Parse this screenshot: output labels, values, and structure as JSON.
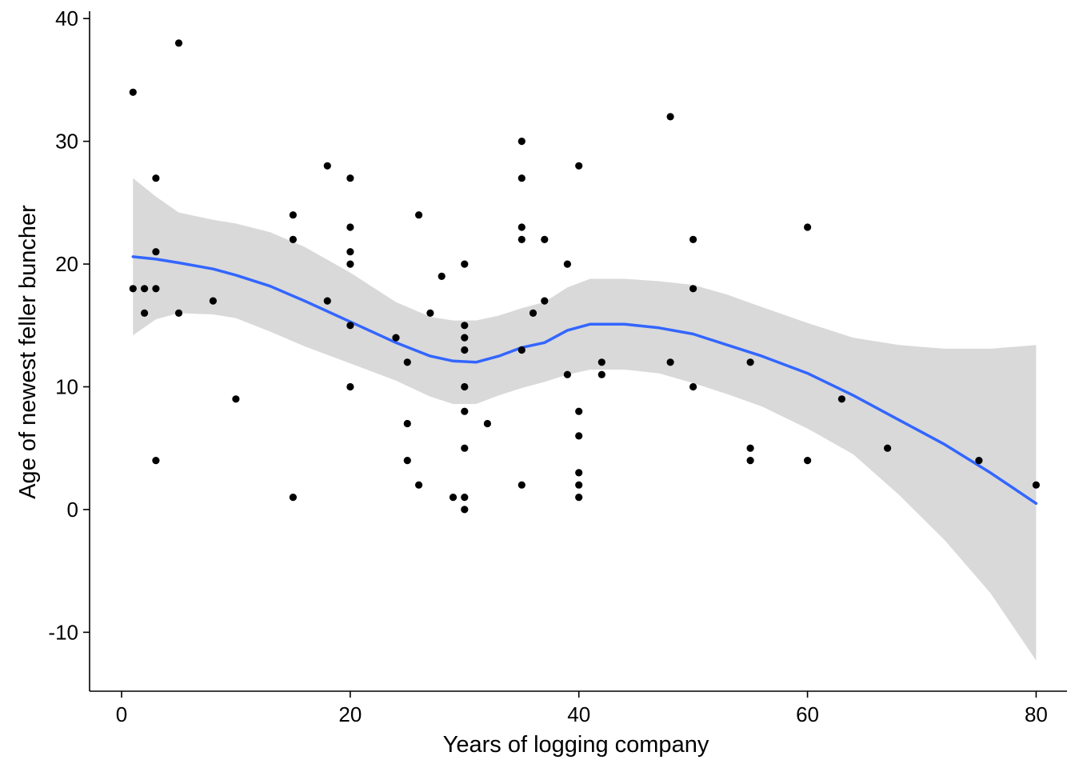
{
  "chart_data": {
    "type": "scatter",
    "title": "",
    "xlabel": "Years of logging company",
    "ylabel": "Age of newest feller buncher",
    "xlim": [
      -2.8,
      82.7
    ],
    "ylim": [
      -14.8,
      40.6
    ],
    "x_ticks": [
      0,
      20,
      40,
      60,
      80
    ],
    "y_ticks": [
      -10,
      0,
      10,
      20,
      30,
      40
    ],
    "grid": false,
    "legend": "none",
    "colors": {
      "points": "#000000",
      "smooth_line": "#3366FF",
      "ribbon": "#D9D9D9"
    },
    "points": [
      {
        "x": 1,
        "y": 34
      },
      {
        "x": 1,
        "y": 18
      },
      {
        "x": 2,
        "y": 18
      },
      {
        "x": 2,
        "y": 16
      },
      {
        "x": 3,
        "y": 27
      },
      {
        "x": 3,
        "y": 21
      },
      {
        "x": 3,
        "y": 18
      },
      {
        "x": 3,
        "y": 4
      },
      {
        "x": 5,
        "y": 38
      },
      {
        "x": 5,
        "y": 16
      },
      {
        "x": 8,
        "y": 17
      },
      {
        "x": 10,
        "y": 9
      },
      {
        "x": 15,
        "y": 24
      },
      {
        "x": 15,
        "y": 22
      },
      {
        "x": 15,
        "y": 1
      },
      {
        "x": 18,
        "y": 28
      },
      {
        "x": 18,
        "y": 17
      },
      {
        "x": 20,
        "y": 27
      },
      {
        "x": 20,
        "y": 23
      },
      {
        "x": 20,
        "y": 21
      },
      {
        "x": 20,
        "y": 20
      },
      {
        "x": 20,
        "y": 15
      },
      {
        "x": 20,
        "y": 10
      },
      {
        "x": 24,
        "y": 14
      },
      {
        "x": 25,
        "y": 12
      },
      {
        "x": 25,
        "y": 7
      },
      {
        "x": 25,
        "y": 4
      },
      {
        "x": 26,
        "y": 24
      },
      {
        "x": 26,
        "y": 2
      },
      {
        "x": 27,
        "y": 16
      },
      {
        "x": 28,
        "y": 19
      },
      {
        "x": 29,
        "y": 1
      },
      {
        "x": 30,
        "y": 20
      },
      {
        "x": 30,
        "y": 15
      },
      {
        "x": 30,
        "y": 14
      },
      {
        "x": 30,
        "y": 13
      },
      {
        "x": 30,
        "y": 10
      },
      {
        "x": 30,
        "y": 8
      },
      {
        "x": 30,
        "y": 5
      },
      {
        "x": 30,
        "y": 1
      },
      {
        "x": 30,
        "y": 0
      },
      {
        "x": 32,
        "y": 7
      },
      {
        "x": 35,
        "y": 30
      },
      {
        "x": 35,
        "y": 27
      },
      {
        "x": 35,
        "y": 23
      },
      {
        "x": 35,
        "y": 22
      },
      {
        "x": 35,
        "y": 13
      },
      {
        "x": 35,
        "y": 2
      },
      {
        "x": 36,
        "y": 16
      },
      {
        "x": 37,
        "y": 22
      },
      {
        "x": 37,
        "y": 17
      },
      {
        "x": 39,
        "y": 20
      },
      {
        "x": 39,
        "y": 11
      },
      {
        "x": 40,
        "y": 28
      },
      {
        "x": 40,
        "y": 8
      },
      {
        "x": 40,
        "y": 6
      },
      {
        "x": 40,
        "y": 3
      },
      {
        "x": 40,
        "y": 2
      },
      {
        "x": 40,
        "y": 1
      },
      {
        "x": 42,
        "y": 12
      },
      {
        "x": 42,
        "y": 11
      },
      {
        "x": 48,
        "y": 32
      },
      {
        "x": 48,
        "y": 12
      },
      {
        "x": 50,
        "y": 22
      },
      {
        "x": 50,
        "y": 18
      },
      {
        "x": 50,
        "y": 10
      },
      {
        "x": 55,
        "y": 12
      },
      {
        "x": 55,
        "y": 5
      },
      {
        "x": 55,
        "y": 4
      },
      {
        "x": 60,
        "y": 23
      },
      {
        "x": 60,
        "y": 4
      },
      {
        "x": 63,
        "y": 9
      },
      {
        "x": 67,
        "y": 5
      },
      {
        "x": 75,
        "y": 4
      },
      {
        "x": 80,
        "y": 2
      }
    ],
    "smooth": [
      {
        "x": 1,
        "y": 20.6,
        "lo": 14.2,
        "hi": 27.0
      },
      {
        "x": 3,
        "y": 20.4,
        "lo": 15.5,
        "hi": 25.5
      },
      {
        "x": 5,
        "y": 20.1,
        "lo": 16.0,
        "hi": 24.2
      },
      {
        "x": 8,
        "y": 19.6,
        "lo": 15.9,
        "hi": 23.6
      },
      {
        "x": 10,
        "y": 19.1,
        "lo": 15.6,
        "hi": 23.3
      },
      {
        "x": 13,
        "y": 18.2,
        "lo": 14.5,
        "hi": 22.6
      },
      {
        "x": 16,
        "y": 17.0,
        "lo": 13.3,
        "hi": 21.4
      },
      {
        "x": 20,
        "y": 15.3,
        "lo": 11.9,
        "hi": 19.3
      },
      {
        "x": 24,
        "y": 13.6,
        "lo": 10.5,
        "hi": 16.9
      },
      {
        "x": 27,
        "y": 12.5,
        "lo": 9.2,
        "hi": 15.7
      },
      {
        "x": 29,
        "y": 12.1,
        "lo": 8.6,
        "hi": 15.4
      },
      {
        "x": 31,
        "y": 12.0,
        "lo": 8.6,
        "hi": 15.4
      },
      {
        "x": 33,
        "y": 12.5,
        "lo": 9.3,
        "hi": 15.8
      },
      {
        "x": 35,
        "y": 13.2,
        "lo": 9.9,
        "hi": 16.4
      },
      {
        "x": 37,
        "y": 13.6,
        "lo": 10.4,
        "hi": 16.9
      },
      {
        "x": 39,
        "y": 14.6,
        "lo": 11.0,
        "hi": 18.1
      },
      {
        "x": 41,
        "y": 15.1,
        "lo": 11.4,
        "hi": 18.8
      },
      {
        "x": 44,
        "y": 15.1,
        "lo": 11.4,
        "hi": 18.8
      },
      {
        "x": 47,
        "y": 14.8,
        "lo": 11.1,
        "hi": 18.6
      },
      {
        "x": 50,
        "y": 14.3,
        "lo": 10.3,
        "hi": 18.3
      },
      {
        "x": 53,
        "y": 13.4,
        "lo": 9.4,
        "hi": 17.5
      },
      {
        "x": 56,
        "y": 12.5,
        "lo": 8.4,
        "hi": 16.5
      },
      {
        "x": 60,
        "y": 11.1,
        "lo": 6.6,
        "hi": 15.2
      },
      {
        "x": 64,
        "y": 9.3,
        "lo": 4.5,
        "hi": 14.0
      },
      {
        "x": 68,
        "y": 7.3,
        "lo": 1.2,
        "hi": 13.4
      },
      {
        "x": 72,
        "y": 5.3,
        "lo": -2.5,
        "hi": 13.1
      },
      {
        "x": 76,
        "y": 3.0,
        "lo": -6.8,
        "hi": 13.1
      },
      {
        "x": 80,
        "y": 0.5,
        "lo": -12.3,
        "hi": 13.4
      }
    ]
  }
}
